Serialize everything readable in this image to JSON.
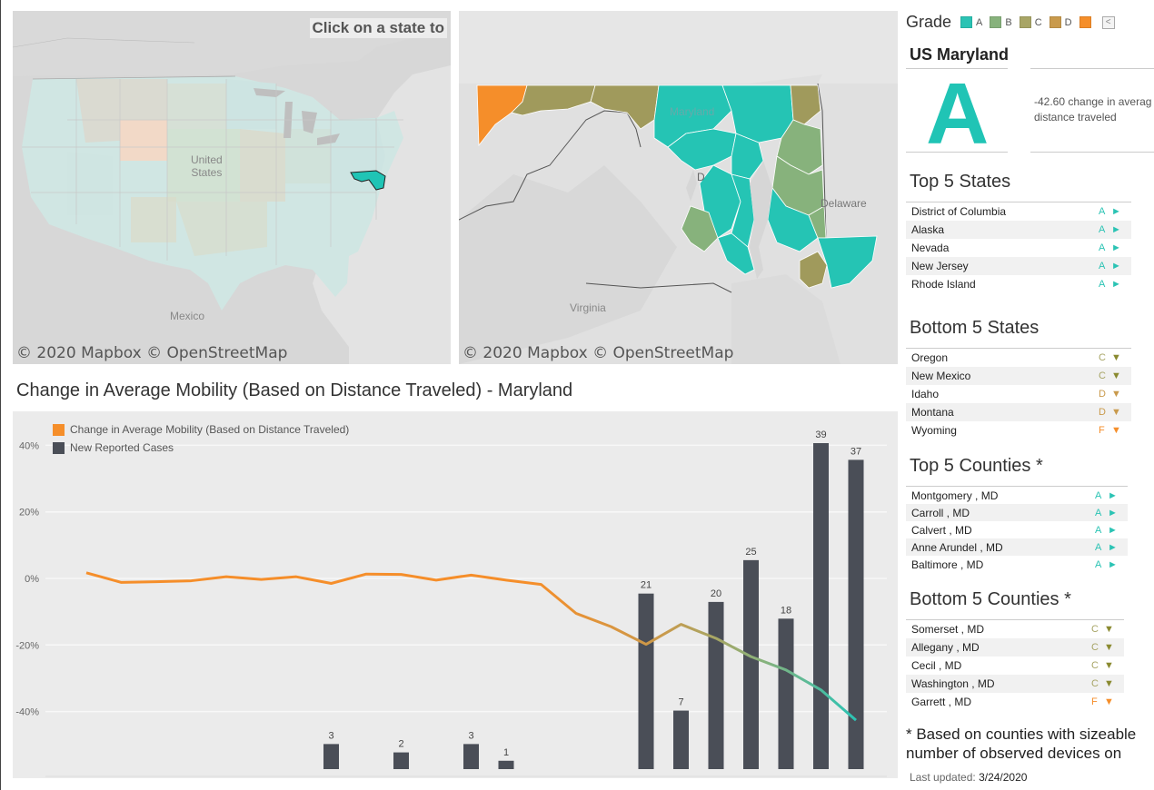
{
  "maps": {
    "us": {
      "hint": "Click on a state to",
      "attribution": "© 2020 Mapbox © OpenStreetMap",
      "labels": {
        "country": "United\nStates",
        "mexico": "Mexico"
      }
    },
    "md": {
      "attribution": "© 2020 Mapbox © OpenStreetMap",
      "labels": {
        "maryland": "Maryland",
        "delaware": "Delaware",
        "virginia": "Virginia",
        "dc": "D"
      }
    }
  },
  "chart_title": "Change in Average Mobility (Based on Distance Traveled) -  Maryland",
  "chart_data": {
    "type": "bar",
    "title": "Change in Average Mobility (Based on Distance Traveled) -  Maryland",
    "y_tick_labels": [
      "40%",
      "20%",
      "0%",
      "-20%",
      "-40%"
    ],
    "y_ticks": [
      40,
      20,
      0,
      -20,
      -40
    ],
    "ylim": [
      -60,
      45
    ],
    "grid": true,
    "legend_position": "top-left",
    "series": [
      {
        "name": "Change in Average Mobility (Based on Distance Traveled)",
        "kind": "line",
        "color": "#f58e2a",
        "values": [
          1.7,
          -1.2,
          -1.0,
          -0.7,
          0.5,
          -0.3,
          0.5,
          -1.5,
          1.3,
          1.2,
          -0.5,
          1.0,
          -0.5,
          -1.8,
          -10.5,
          -14.5,
          -19.8,
          -13.8,
          -18.0,
          -23.5,
          -27.5,
          -33.5,
          -42.6
        ]
      },
      {
        "name": "New Reported Cases",
        "kind": "bar",
        "color": "#4a4e57",
        "values": [
          null,
          null,
          null,
          null,
          null,
          null,
          null,
          3,
          null,
          2,
          null,
          3,
          1,
          null,
          null,
          null,
          21,
          7,
          20,
          25,
          18,
          39,
          37
        ]
      }
    ]
  },
  "panel": {
    "grade_title": "Grade",
    "grade_keys": [
      {
        "label": "A",
        "color": "#2bc3b4"
      },
      {
        "label": "B",
        "color": "#87b27c"
      },
      {
        "label": "C",
        "color": "#a8a566"
      },
      {
        "label": "D",
        "color": "#c99a4c"
      },
      {
        "label": "",
        "color": "#f58e2a"
      }
    ],
    "state": "US Maryland",
    "grade": "A",
    "change_text": "-42.60 change in averag distance traveled",
    "top_states_title": "Top 5 States",
    "top_states": [
      {
        "name": "District of Columbia",
        "grade": "A"
      },
      {
        "name": "Alaska",
        "grade": "A"
      },
      {
        "name": "Nevada",
        "grade": "A"
      },
      {
        "name": "New Jersey",
        "grade": "A"
      },
      {
        "name": "Rhode Island",
        "grade": "A"
      }
    ],
    "bottom_states_title": "Bottom 5 States",
    "bottom_states": [
      {
        "name": "Oregon",
        "grade": "C"
      },
      {
        "name": "New Mexico",
        "grade": "C"
      },
      {
        "name": "Idaho",
        "grade": "D"
      },
      {
        "name": "Montana",
        "grade": "D"
      },
      {
        "name": "Wyoming",
        "grade": "F"
      }
    ],
    "top_counties_title": "Top 5 Counties *",
    "top_counties": [
      {
        "name": "Montgomery , MD",
        "grade": "A"
      },
      {
        "name": "Carroll , MD",
        "grade": "A"
      },
      {
        "name": "Calvert , MD",
        "grade": "A"
      },
      {
        "name": "Anne Arundel , MD",
        "grade": "A"
      },
      {
        "name": "Baltimore , MD",
        "grade": "A"
      }
    ],
    "bottom_counties_title": "Bottom 5 Counties *",
    "bottom_counties": [
      {
        "name": "Somerset , MD",
        "grade": "C"
      },
      {
        "name": "Allegany , MD",
        "grade": "C"
      },
      {
        "name": "Cecil , MD",
        "grade": "C"
      },
      {
        "name": "Washington , MD",
        "grade": "C"
      },
      {
        "name": "Garrett , MD",
        "grade": "F"
      }
    ],
    "footnote_line1": "* Based on counties with sizeable",
    "footnote_line2": "number of observed devices on",
    "updated_label": "Last updated: ",
    "updated_value": "3/24/2020"
  }
}
